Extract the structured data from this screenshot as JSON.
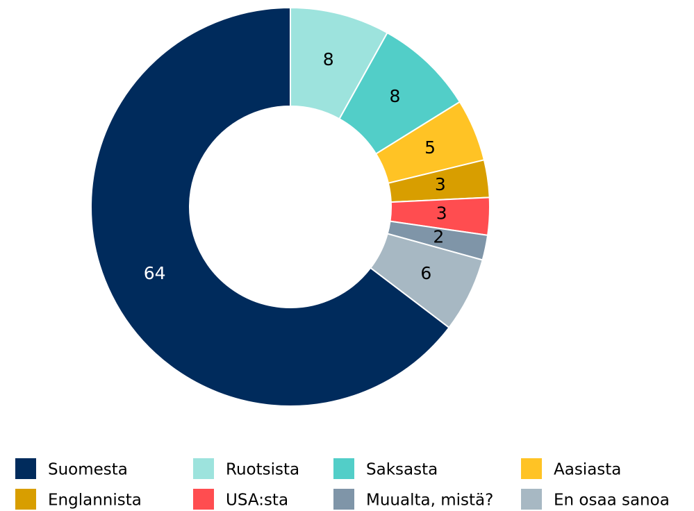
{
  "chart_data": {
    "type": "donut",
    "series": [
      {
        "name": "Suomesta",
        "color": "#002b5c",
        "values": [
          64
        ]
      },
      {
        "name": "Ruotsista",
        "color": "#9de3dd",
        "values": [
          8
        ]
      },
      {
        "name": "Saksasta",
        "color": "#52cec8",
        "values": [
          8
        ]
      },
      {
        "name": "Aasiasta",
        "color": "#ffc325",
        "values": [
          5
        ]
      },
      {
        "name": "Englannista",
        "color": "#d89e00",
        "values": [
          3
        ]
      },
      {
        "name": "USA:sta",
        "color": "#ff4d50",
        "values": [
          3
        ]
      },
      {
        "name": "Muualta, mistä?",
        "color": "#7f95a8",
        "values": [
          2
        ]
      },
      {
        "name": "En osaa sanoa",
        "color": "#a7b8c3",
        "values": [
          6
        ]
      }
    ],
    "legend": "bottom"
  }
}
